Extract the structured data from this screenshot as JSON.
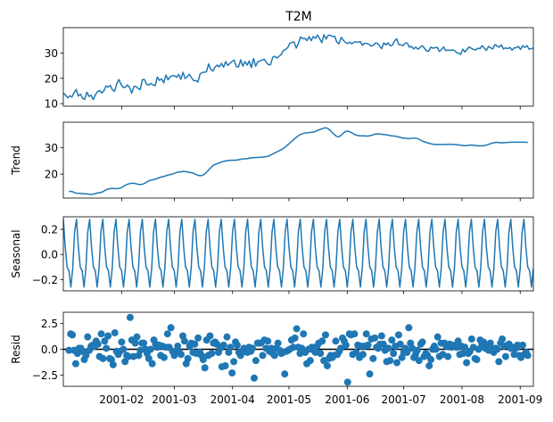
{
  "chart_data": [
    {
      "type": "line",
      "title": "T2M",
      "ylabel": "",
      "ylim": [
        9,
        40
      ],
      "yticks": [
        "10",
        "20",
        "30"
      ],
      "series": [
        {
          "values": [
            14.1,
            13.5,
            12.3,
            13.1,
            12.6,
            14.3,
            15.6,
            13.0,
            13.8,
            12.1,
            11.7,
            14.5,
            12.9,
            13.3,
            11.6,
            13.5,
            14.8,
            15.2,
            14.2,
            15.1,
            17.0,
            16.5,
            17.2,
            15.4,
            14.9,
            17.9,
            19.5,
            17.6,
            16.4,
            16.5,
            17.4,
            16.4,
            14.1,
            16.7,
            16.8,
            16.0,
            15.5,
            19.5,
            19.5,
            17.6,
            17.3,
            18.0,
            17.4,
            17.1,
            20.5,
            19.2,
            19.8,
            18.2,
            21.3,
            19.4,
            20.6,
            21.0,
            21.1,
            20.4,
            21.5,
            19.6,
            22.4,
            19.9,
            20.6,
            21.6,
            20.2,
            19.1,
            19.1,
            18.5,
            21.7,
            22.3,
            22.4,
            22.6,
            25.7,
            23.5,
            22.9,
            24.4,
            25.2,
            24.5,
            25.9,
            24.4,
            26.6,
            25.1,
            25.9,
            26.7,
            27.2,
            24.6,
            24.5,
            27.3,
            24.8,
            26.6,
            25.2,
            26.8,
            24.2,
            27.8,
            24.8,
            26.5,
            26.9,
            27.2,
            27.6,
            26.3,
            25.4,
            25.4,
            28.3,
            28.7,
            28.0,
            28.7,
            29.4,
            31.0,
            31.4,
            32.1,
            33.8,
            34.2,
            34.3,
            31.9,
            33.7,
            36.3,
            35.7,
            35.8,
            34.9,
            36.4,
            34.9,
            36.5,
            35.8,
            37.1,
            35.6,
            34.1,
            37.2,
            35.5,
            37.0,
            37.0,
            36.5,
            36.6,
            34.3,
            33.6,
            36.1,
            35.1,
            34.2,
            33.7,
            34.3,
            33.6,
            34.3,
            34.3,
            34.3,
            34.5,
            33.0,
            33.8,
            33.8,
            33.5,
            32.7,
            33.0,
            33.9,
            33.8,
            32.8,
            31.7,
            34.0,
            33.2,
            34.0,
            32.8,
            33.1,
            34.7,
            35.6,
            33.3,
            33.2,
            32.9,
            33.9,
            33.9,
            32.3,
            32.6,
            31.6,
            32.3,
            31.5,
            32.2,
            32.9,
            31.9,
            30.8,
            30.7,
            32.3,
            31.9,
            32.1,
            32.2,
            30.6,
            31.3,
            32.4,
            30.9,
            31.2,
            31.0,
            31.2,
            31.0,
            30.3,
            29.9,
            29.5,
            31.5,
            30.4,
            31.5,
            32.4,
            31.8,
            31.4,
            31.2,
            31.9,
            31.7,
            32.9,
            32.0,
            31.0,
            32.6,
            32.0,
            31.6,
            33.3,
            32.8,
            32.3,
            33.2,
            31.6,
            32.0,
            31.7,
            32.2,
            31.1,
            32.0,
            32.1,
            32.6,
            31.4,
            32.9,
            32.2,
            32.9,
            31.5,
            31.7,
            32.0
          ]
        }
      ],
      "x_start": "2001-01-01",
      "x_end": "2001-09-08",
      "xticks": [
        "2001-02",
        "2001-03",
        "2001-04",
        "2001-05",
        "2001-06",
        "2001-07",
        "2001-08",
        "2001-09"
      ]
    },
    {
      "type": "line",
      "title": "",
      "ylabel": "Trend",
      "ylim": [
        11,
        39.5
      ],
      "yticks": [
        "20",
        "30"
      ],
      "series": [
        {
          "values": [
            13.5,
            13.5,
            13.3,
            12.9,
            12.8,
            12.8,
            12.7,
            12.6,
            12.6,
            12.5,
            12.4,
            12.4,
            12.6,
            12.8,
            13.0,
            13.1,
            13.4,
            13.9,
            14.3,
            14.5,
            14.6,
            14.6,
            14.5,
            14.6,
            14.7,
            15.0,
            15.6,
            16.0,
            16.3,
            16.5,
            16.6,
            16.5,
            16.3,
            16.1,
            16.1,
            16.3,
            16.7,
            17.2,
            17.6,
            17.8,
            18.0,
            18.2,
            18.5,
            18.8,
            19.0,
            19.2,
            19.5,
            19.7,
            19.9,
            20.1,
            20.4,
            20.7,
            20.8,
            20.9,
            21.0,
            20.9,
            20.8,
            20.6,
            20.5,
            20.2,
            19.8,
            19.5,
            19.4,
            19.6,
            20.1,
            20.9,
            21.8,
            22.6,
            23.3,
            23.7,
            24.0,
            24.3,
            24.6,
            24.8,
            25.0,
            25.1,
            25.2,
            25.2,
            25.2,
            25.3,
            25.4,
            25.6,
            25.7,
            25.8,
            25.8,
            26.0,
            26.1,
            26.2,
            26.2,
            26.3,
            26.3,
            26.4,
            26.5,
            26.6,
            26.8,
            27.2,
            27.6,
            28.0,
            28.4,
            28.8,
            29.2,
            29.7,
            30.3,
            31.0,
            31.7,
            32.4,
            33.1,
            33.8,
            34.4,
            34.9,
            35.2,
            35.4,
            35.5,
            35.6,
            35.7,
            35.8,
            36.0,
            36.4,
            36.7,
            37.0,
            37.3,
            37.4,
            37.1,
            36.4,
            35.6,
            34.8,
            34.2,
            34.0,
            34.5,
            35.3,
            35.9,
            36.2,
            36.0,
            35.6,
            35.1,
            34.7,
            34.5,
            34.4,
            34.4,
            34.4,
            34.3,
            34.3,
            34.5,
            34.7,
            35.0,
            35.1,
            35.1,
            35.0,
            34.9,
            34.8,
            34.7,
            34.5,
            34.4,
            34.3,
            34.2,
            34.0,
            33.8,
            33.6,
            33.5,
            33.4,
            33.3,
            33.4,
            33.5,
            33.5,
            33.4,
            33.0,
            32.6,
            32.2,
            32.0,
            31.7,
            31.5,
            31.3,
            31.2,
            31.1,
            31.1,
            31.1,
            31.1,
            31.1,
            31.2,
            31.2,
            31.2,
            31.1,
            31.1,
            31.0,
            30.9,
            30.8,
            30.7,
            30.7,
            30.8,
            30.9,
            30.9,
            30.8,
            30.7,
            30.6,
            30.6,
            30.7,
            30.8,
            31.0,
            31.3,
            31.6,
            31.8,
            31.9,
            31.9,
            31.8,
            31.8,
            31.8,
            31.9,
            31.9,
            32.0,
            32.0,
            32.0,
            32.0,
            32.0,
            32.0,
            32.0,
            32.0,
            31.9
          ]
        }
      ],
      "x_start": "2001-01-04",
      "x_end": "2001-09-05",
      "xticks": [
        "2001-02",
        "2001-03",
        "2001-04",
        "2001-05",
        "2001-06",
        "2001-07",
        "2001-08",
        "2001-09"
      ]
    },
    {
      "type": "line",
      "title": "",
      "ylabel": "Seasonal",
      "ylim": [
        -0.29,
        0.3
      ],
      "yticks": [
        "0.2",
        "0.0",
        "−0.2"
      ],
      "ytick_values": [
        0.2,
        0.0,
        -0.2
      ],
      "period_days": 7,
      "seasonal_pattern": [
        0.28,
        0.06,
        -0.1,
        -0.13,
        -0.26,
        -0.11,
        0.18
      ],
      "x_start": "2001-01-01",
      "x_end": "2001-09-08",
      "xticks": [
        "2001-02",
        "2001-03",
        "2001-04",
        "2001-05",
        "2001-06",
        "2001-07",
        "2001-08",
        "2001-09"
      ]
    },
    {
      "type": "scatter",
      "title": "",
      "ylabel": "Resid",
      "ylim": [
        -3.6,
        3.6
      ],
      "yticks": [
        "2.5",
        "0.0",
        "−2.5"
      ],
      "ytick_values": [
        2.5,
        0.0,
        -2.5
      ],
      "baseline": 0,
      "series": [
        {
          "values": [
            -0.1,
            1.5,
            1.4,
            -0.1,
            -1.4,
            -0.4,
            0.1,
            0.1,
            -0.2,
            -1.0,
            -0.6,
            1.2,
            -0.1,
            0.3,
            0.4,
            0.3,
            0.8,
            0.5,
            -0.7,
            1.5,
            -0.9,
            0.8,
            0.1,
            1.3,
            -0.9,
            -1.0,
            -1.5,
            1.6,
            -0.2,
            -0.5,
            -0.2,
            0.7,
            0.0,
            -1.2,
            -0.6,
            -0.7,
            3.1,
            0.9,
            -0.7,
            0.6,
            1.2,
            -0.6,
            -0.1,
            0.6,
            0.6,
            0.0,
            -0.4,
            -0.9,
            0.0,
            -1.4,
            0.9,
            0.5,
            0.2,
            0.4,
            -0.6,
            0.3,
            -0.8,
            0.2,
            1.5,
            0.2,
            2.1,
            -0.2,
            -0.6,
            -0.3,
            0.3,
            -0.3,
            -0.5,
            1.3,
            0.8,
            -1.4,
            -0.9,
            0.3,
            0.6,
            -0.3,
            0.5,
            -0.4,
            1.1,
            -0.3,
            -0.6,
            -1.0,
            -1.8,
            0.9,
            -0.6,
            1.3,
            -0.4,
            0.6,
            0.7,
            0.5,
            -0.3,
            0.1,
            -1.7,
            0.4,
            -1.6,
            1.2,
            -0.3,
            0.2,
            -2.3,
            -1.2,
            0.7,
            0.4,
            -0.3,
            -0.6,
            -0.3,
            0.1,
            0.0,
            -0.3,
            0.2,
            -0.2,
            0.1,
            -2.8,
            -1.1,
            0.6,
            0.6,
            0.6,
            -0.6,
            0.9,
            0.1,
            0.8,
            -0.2,
            0.1,
            -0.4,
            -0.6,
            0.1,
            0.6,
            -0.1,
            -0.4,
            -0.3,
            -2.4,
            -0.2,
            -0.1,
            0.0,
            0.9,
            0.2,
            1.1,
            2.0,
            0.2,
            -0.4,
            0.1,
            1.5,
            -0.3,
            -1.4,
            0.0,
            -1.1,
            0.2,
            -0.1,
            -0.3,
            0.3,
            0.6,
            -0.4,
            0.8,
            -1.1,
            1.4,
            -1.6,
            -0.9,
            -0.6,
            -0.8,
            -0.6,
            0.8,
            -0.5,
            -0.2,
            0.1,
            1.1,
            0.8,
            0.4,
            -3.2,
            1.5,
            1.4,
            -0.5,
            1.5,
            -0.3,
            0.4,
            -0.8,
            0.3,
            -0.5,
            0.3,
            1.5,
            0.4,
            -2.4,
            1.0,
            -0.9,
            1.1,
            0.2,
            0.1,
            0.5,
            1.3,
            0.5,
            -0.1,
            -1.2,
            0.1,
            -1.1,
            0.9,
            -0.4,
            0.3,
            -1.3,
            1.4,
            0.5,
            -0.8,
            -0.3,
            0.1,
            -0.3,
            2.1,
            0.6,
            0.1,
            -0.8,
            -0.5,
            -0.1,
            -1.1,
            0.5,
            0.7,
            -0.7,
            -0.4,
            -0.6,
            -1.6,
            -1.0,
            0.0,
            0.3,
            0.0,
            1.2,
            -0.7,
            0.6,
            -0.5,
            0.6,
            0.3,
            -0.7,
            0.5,
            0.2,
            0.4,
            0.3,
            0.2,
            0.8,
            -0.5,
            0.3,
            -0.4,
            0.2,
            -1.3,
            -0.4,
            -0.2,
            1.0,
            0.2,
            -0.9,
            -1.0,
            0.0,
            0.9,
            0.5,
            0.7,
            0.1,
            0.4,
            -0.1,
            0.6,
            0.0,
            -0.3,
            0.1,
            0.0,
            -1.2,
            0.6,
            1.0,
            0.3,
            -0.7,
            0.4,
            0.5,
            0.1,
            0.2,
            -0.5,
            0.1,
            0.4,
            -0.6,
            -0.8,
            0.4,
            -0.5,
            -0.3,
            -0.6
          ]
        }
      ],
      "x_start": "2001-01-04",
      "x_end": "2001-09-05",
      "xticks": [
        "2001-02",
        "2001-03",
        "2001-04",
        "2001-05",
        "2001-06",
        "2001-07",
        "2001-08",
        "2001-09"
      ]
    }
  ],
  "colors": {
    "line": "#1f77b4",
    "axis": "#000000",
    "baseline": "#000000"
  }
}
